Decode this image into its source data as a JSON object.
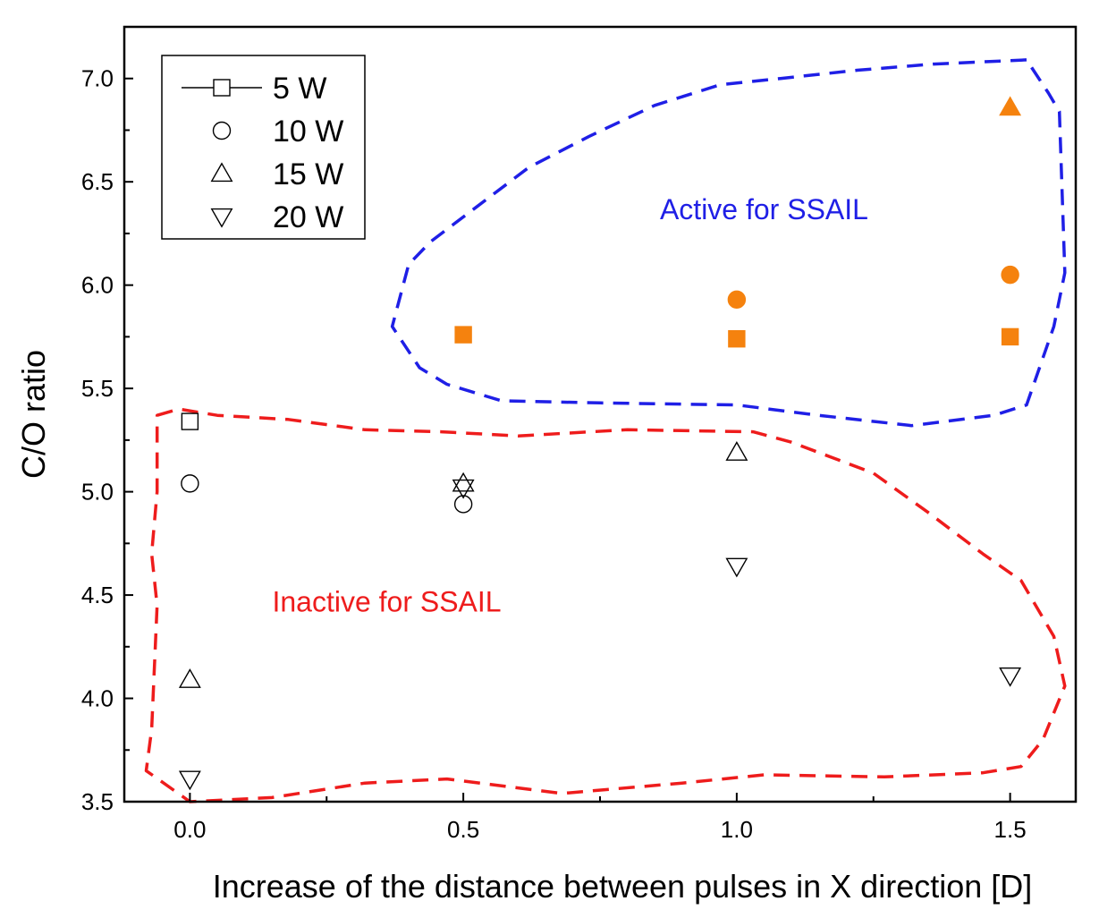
{
  "chart_data": {
    "type": "scatter",
    "title": "",
    "xlabel": "Increase of the distance between pulses in X direction [D]",
    "ylabel": "C/O ratio",
    "xlim": [
      -0.12,
      1.62
    ],
    "ylim": [
      3.5,
      7.25
    ],
    "x_ticks": [
      "0.0",
      "0.5",
      "1.0",
      "1.5"
    ],
    "y_ticks": [
      "3.5",
      "4.0",
      "4.5",
      "5.0",
      "5.5",
      "6.0",
      "6.5",
      "7.0"
    ],
    "grid": false,
    "legend_position": "top-left",
    "series": [
      {
        "name": "5 W",
        "marker": "square",
        "points": [
          {
            "x": 0.0,
            "y": 5.34,
            "filled": false
          },
          {
            "x": 0.5,
            "y": 5.76,
            "filled": true
          },
          {
            "x": 1.0,
            "y": 5.74,
            "filled": true
          },
          {
            "x": 1.5,
            "y": 5.75,
            "filled": true
          }
        ]
      },
      {
        "name": "10 W",
        "marker": "circle",
        "points": [
          {
            "x": 0.0,
            "y": 5.04,
            "filled": false
          },
          {
            "x": 0.5,
            "y": 4.94,
            "filled": false
          },
          {
            "x": 1.0,
            "y": 5.93,
            "filled": true
          },
          {
            "x": 1.5,
            "y": 6.05,
            "filled": true
          }
        ]
      },
      {
        "name": "15 W",
        "marker": "triangle-up",
        "points": [
          {
            "x": 0.0,
            "y": 4.09,
            "filled": false
          },
          {
            "x": 0.5,
            "y": 5.04,
            "filled": false
          },
          {
            "x": 1.0,
            "y": 5.19,
            "filled": false
          },
          {
            "x": 1.5,
            "y": 6.86,
            "filled": true
          }
        ]
      },
      {
        "name": "20 W",
        "marker": "triangle-down",
        "points": [
          {
            "x": 0.0,
            "y": 3.61,
            "filled": false
          },
          {
            "x": 0.5,
            "y": 5.02,
            "filled": false
          },
          {
            "x": 1.0,
            "y": 4.64,
            "filled": false
          },
          {
            "x": 1.5,
            "y": 4.11,
            "filled": false
          }
        ]
      }
    ],
    "regions": [
      {
        "label": "Active for SSAIL",
        "color": "#1f1fe6",
        "label_pos": {
          "x": 1.05,
          "y": 6.32
        },
        "boundary": [
          [
            1.53,
            7.09
          ],
          [
            1.36,
            7.07
          ],
          [
            1.22,
            7.04
          ],
          [
            1.08,
            7.0
          ],
          [
            0.97,
            6.97
          ],
          [
            0.85,
            6.87
          ],
          [
            0.73,
            6.72
          ],
          [
            0.62,
            6.57
          ],
          [
            0.52,
            6.37
          ],
          [
            0.44,
            6.21
          ],
          [
            0.4,
            6.1
          ],
          [
            0.37,
            5.8
          ],
          [
            0.42,
            5.6
          ],
          [
            0.47,
            5.52
          ],
          [
            0.57,
            5.44
          ],
          [
            0.75,
            5.43
          ],
          [
            1.0,
            5.42
          ],
          [
            1.15,
            5.37
          ],
          [
            1.32,
            5.32
          ],
          [
            1.47,
            5.37
          ],
          [
            1.53,
            5.42
          ],
          [
            1.58,
            5.8
          ],
          [
            1.6,
            6.06
          ],
          [
            1.59,
            6.84
          ],
          [
            1.57,
            6.93
          ]
        ]
      },
      {
        "label": "Inactive for SSAIL",
        "color": "#ee1c1c",
        "label_pos": {
          "x": 0.36,
          "y": 4.42
        },
        "boundary": [
          [
            -0.06,
            5.37
          ],
          [
            -0.02,
            5.4
          ],
          [
            0.05,
            5.37
          ],
          [
            0.18,
            5.35
          ],
          [
            0.32,
            5.3
          ],
          [
            0.46,
            5.29
          ],
          [
            0.6,
            5.27
          ],
          [
            0.8,
            5.3
          ],
          [
            1.03,
            5.29
          ],
          [
            1.1,
            5.24
          ],
          [
            1.25,
            5.09
          ],
          [
            1.35,
            4.9
          ],
          [
            1.45,
            4.7
          ],
          [
            1.52,
            4.57
          ],
          [
            1.58,
            4.3
          ],
          [
            1.6,
            4.06
          ],
          [
            1.56,
            3.8
          ],
          [
            1.52,
            3.67
          ],
          [
            1.45,
            3.64
          ],
          [
            1.27,
            3.62
          ],
          [
            1.05,
            3.63
          ],
          [
            0.9,
            3.59
          ],
          [
            0.68,
            3.54
          ],
          [
            0.47,
            3.61
          ],
          [
            0.32,
            3.59
          ],
          [
            0.15,
            3.52
          ],
          [
            0.0,
            3.5
          ],
          [
            -0.08,
            3.65
          ],
          [
            -0.07,
            3.85
          ],
          [
            -0.06,
            4.45
          ],
          [
            -0.07,
            4.7
          ],
          [
            -0.06,
            5.0
          ]
        ]
      }
    ],
    "colors": {
      "active_marker": "#f5820e",
      "hollow_marker": "#000000"
    }
  }
}
